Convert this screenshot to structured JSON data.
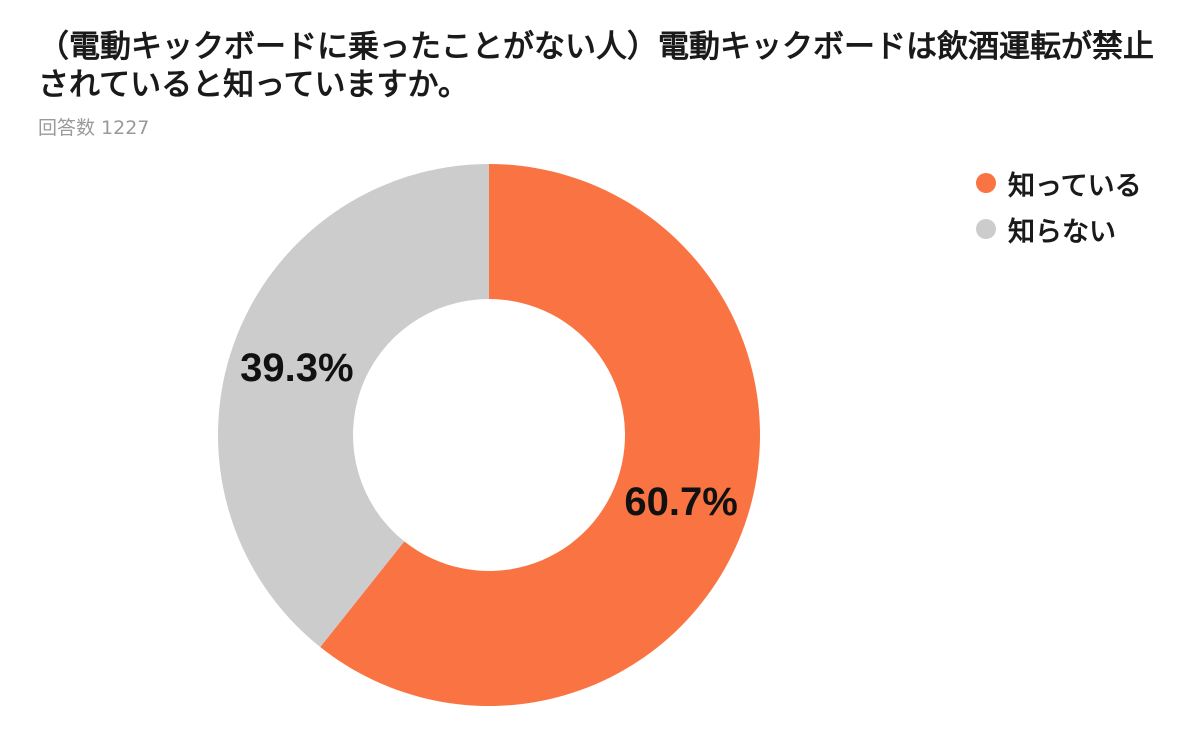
{
  "chart_data": {
    "type": "pie",
    "title": "（電動キックボードに乗ったことがない人）電動キックボードは飲酒運転が禁止されていると知っていますか。",
    "subtitle": "回答数 1227",
    "categories": [
      "知っている",
      "知らない"
    ],
    "values": [
      60.7,
      39.3
    ],
    "data_labels": [
      "60.7%",
      "39.3%"
    ],
    "colors": [
      "#F97442",
      "#CCCCCC"
    ],
    "donut": true,
    "start_angle_deg": 0,
    "direction": "clockwise",
    "legend_position": "top-right"
  }
}
